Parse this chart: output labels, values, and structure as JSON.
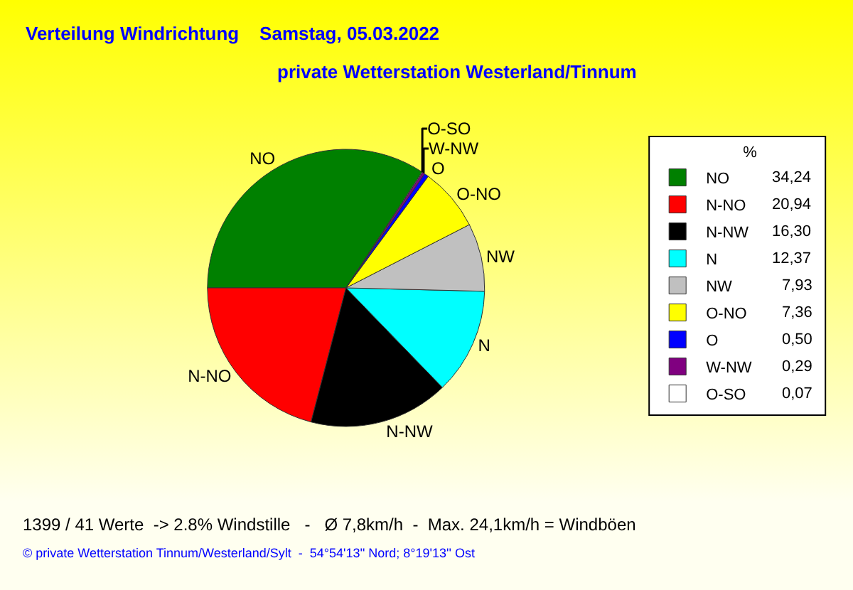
{
  "chart_data": {
    "type": "pie",
    "title": "Verteilung Windrichtung    Samstag, 05.03.2022",
    "subtitle": "private Wetterstation Westerland/Tinnum",
    "categories": [
      "NO",
      "N-NO",
      "N-NW",
      "N",
      "NW",
      "O-NO",
      "O",
      "W-NW",
      "O-SO"
    ],
    "values": [
      34.24,
      20.94,
      16.3,
      12.37,
      7.93,
      7.36,
      0.5,
      0.29,
      0.07
    ],
    "value_labels": [
      "34,24",
      "20,94",
      "16,30",
      "12,37",
      "7,93",
      "7,36",
      "0,50",
      "0,29",
      "0,07"
    ],
    "colors": [
      "#008000",
      "#ff0000",
      "#000000",
      "#00ffff",
      "#c0c0c0",
      "#ffff00",
      "#0000ff",
      "#800080",
      "#ffffff"
    ],
    "legend": "top right",
    "legend_title": "%",
    "annotations": [
      "1399 / 41 Werte  -> 2.8% Windstille   -   Ø 7,8km/h  -  Max. 24,1km/h = Windböen",
      "© private Wetterstation Tinnum/Westerland/Sylt  -  54°54'13'' Nord; 8°19'13'' Ost"
    ]
  }
}
